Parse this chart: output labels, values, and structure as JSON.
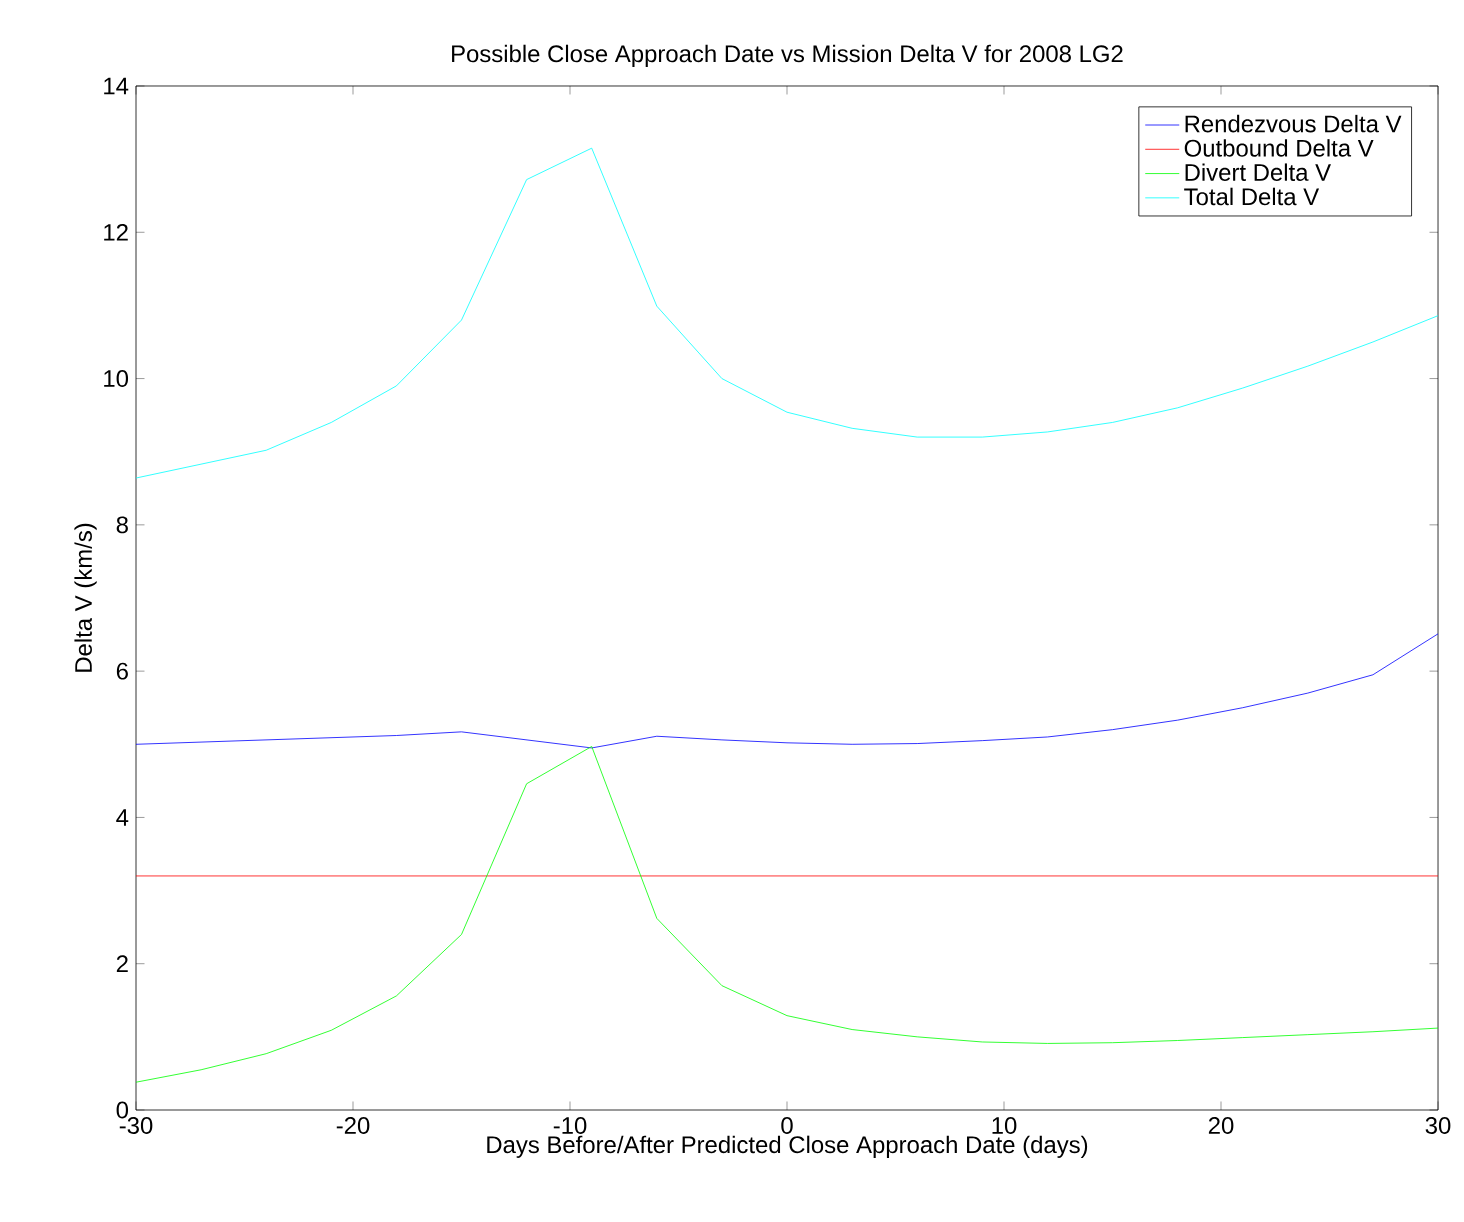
{
  "chart_data": {
    "type": "line",
    "title": "Possible Close Approach Date vs Mission Delta V for 2008 LG2",
    "xlabel": "Days Before/After Predicted Close Approach Date (days)",
    "ylabel": "Delta V (km/s)",
    "x": [
      -30,
      -27,
      -24,
      -21,
      -18,
      -15,
      -12,
      -9,
      -6,
      -3,
      0,
      3,
      6,
      9,
      12,
      15,
      18,
      21,
      24,
      27,
      30
    ],
    "series": [
      {
        "name": "Rendezvous Delta V",
        "color": "#0000ff",
        "values": [
          5.0,
          5.03,
          5.06,
          5.09,
          5.12,
          5.17,
          5.06,
          4.95,
          5.11,
          5.06,
          5.02,
          5.0,
          5.01,
          5.05,
          5.1,
          5.2,
          5.33,
          5.5,
          5.7,
          5.95,
          6.51
        ]
      },
      {
        "name": "Outbound Delta V",
        "color": "#ff0000",
        "x": [
          -30,
          30
        ],
        "values": [
          3.2,
          3.2
        ]
      },
      {
        "name": "Divert Delta V",
        "color": "#00ff00",
        "values": [
          0.38,
          0.55,
          0.77,
          1.09,
          1.56,
          2.4,
          4.46,
          4.97,
          2.62,
          1.7,
          1.29,
          1.1,
          1.0,
          0.93,
          0.91,
          0.92,
          0.95,
          0.99,
          1.03,
          1.07,
          1.12
        ]
      },
      {
        "name": "Total Delta V",
        "color": "#00ffff",
        "values": [
          8.64,
          8.83,
          9.02,
          9.4,
          9.9,
          10.8,
          12.72,
          13.15,
          10.99,
          10.0,
          9.54,
          9.32,
          9.2,
          9.2,
          9.27,
          9.4,
          9.6,
          9.87,
          10.17,
          10.5,
          10.86
        ]
      }
    ],
    "xlim": [
      -30,
      30
    ],
    "ylim": [
      0,
      14
    ],
    "xticks": [
      -30,
      -20,
      -10,
      0,
      10,
      20,
      30
    ],
    "yticks": [
      0,
      2,
      4,
      6,
      8,
      10,
      12,
      14
    ],
    "legend": "top right",
    "grid": false,
    "marker": "none",
    "line_style": "solid"
  }
}
